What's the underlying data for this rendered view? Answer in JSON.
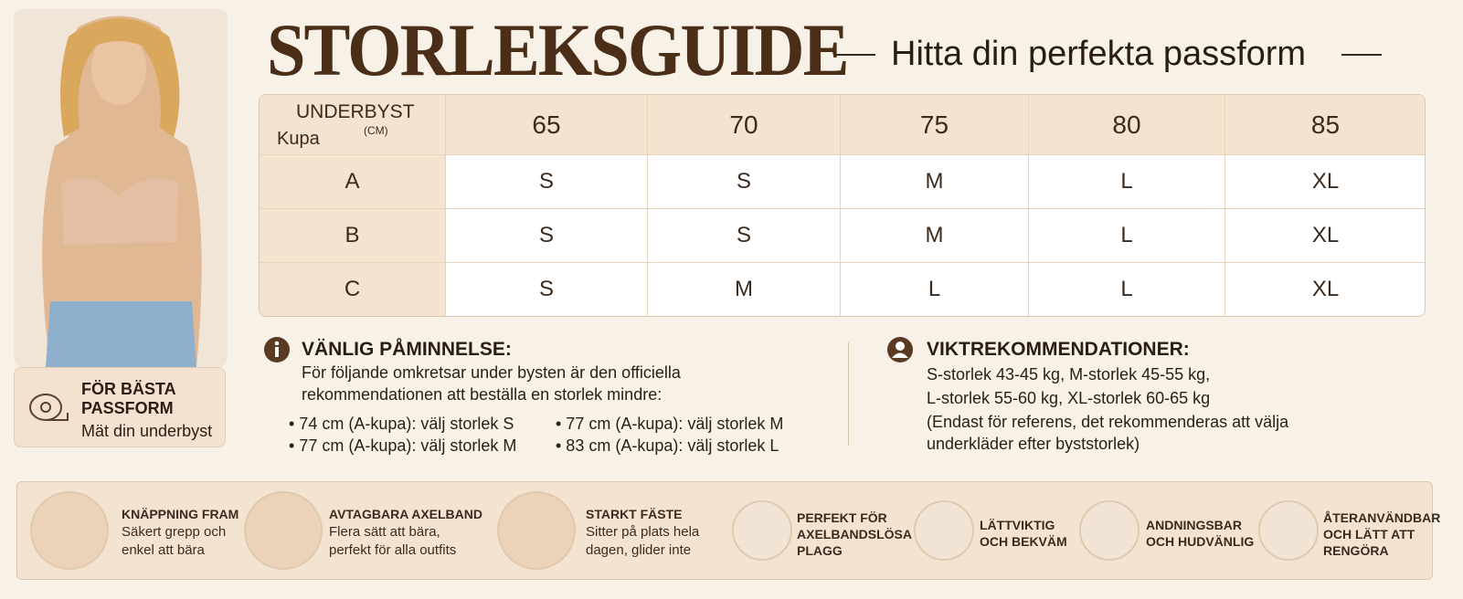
{
  "header": {
    "title": "STORLEKSGUIDE",
    "subtitle": "Hitta din perfekta passform"
  },
  "tip": {
    "title_lines": [
      "FÖR BÄSTA",
      "PASSFORM"
    ],
    "text": "Mät din underbyst"
  },
  "table": {
    "corner": {
      "row_label": "UNDERBYST",
      "unit": "(CM)",
      "col_label": "Kupa"
    },
    "columns": [
      65,
      70,
      75,
      80,
      85
    ],
    "rows": [
      [
        "A",
        "S",
        "S",
        "M",
        "L",
        "XL"
      ],
      [
        "B",
        "S",
        "S",
        "M",
        "L",
        "XL"
      ],
      [
        "C",
        "S",
        "M",
        "L",
        "L",
        "XL"
      ]
    ]
  },
  "reminder": {
    "title": "VÄNLIG PÅMINNELSE:",
    "lines": [
      "För följande omkretsar under bysten är den officiella",
      "rekommendationen att beställa en storlek mindre:"
    ],
    "bullets": [
      "• 74 cm (A-kupa): välj storlek S",
      "• 77 cm (A-kupa): välj storlek M",
      "• 77 cm (A-kupa): välj storlek M",
      "• 83 cm (A-kupa): välj storlek L"
    ]
  },
  "weight": {
    "title": "VIKTREKOMMENDATIONER:",
    "lines": [
      "S-storlek 43-45 kg, M-storlek 45-55 kg,",
      "L-storlek 55-60 kg, XL-storlek 60-65 kg",
      "(Endast för referens, det rekommenderas att välja",
      "underkläder efter byststorlek)"
    ]
  },
  "features": [
    {
      "title": "KNÄPPNING FRAM",
      "lines": [
        "Säkert grepp och",
        "enkel att bära"
      ]
    },
    {
      "title": "AVTAGBARA AXELBAND",
      "lines": [
        "Flera sätt att bära,",
        "perfekt för alla outfits"
      ]
    },
    {
      "title": "STARKT FÄSTE",
      "lines": [
        "Sitter på plats hela",
        "dagen, glider inte"
      ]
    },
    {
      "title": "PERFEKT FÖR",
      "lines": [
        "AXELBANDSLÖSA",
        "PLAGG"
      ]
    },
    {
      "title": "LÄTTVIKTIG",
      "lines": [
        "OCH BEKVÄM"
      ]
    },
    {
      "title": "ANDNINGSBAR",
      "lines": [
        "OCH HUDVÄNLIG"
      ]
    },
    {
      "title": "ÅTERANVÄNDBAR",
      "lines": [
        "OCH LÄTT ATT",
        "RENGÖRA"
      ]
    }
  ]
}
